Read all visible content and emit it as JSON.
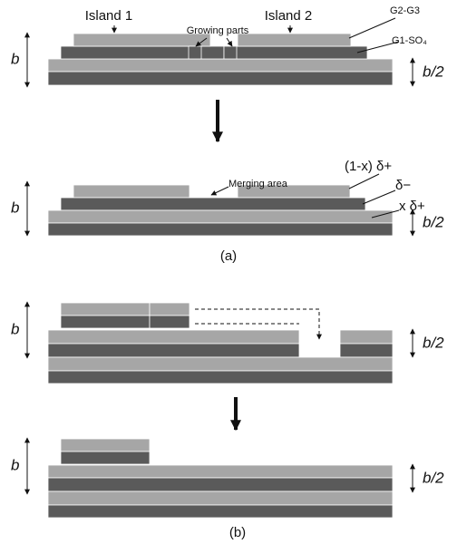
{
  "panel_a": {
    "top": {
      "island_1": "Island 1",
      "island_2": "Island 2",
      "growing_parts": "Growing parts",
      "g2_g3": "G2-G3",
      "g1_so4": "G1-SO₄",
      "b": "b",
      "b_half": "b/2"
    },
    "bottom": {
      "merging_area": "Merging area",
      "layer_top": "(1-x) δ+",
      "layer_mid": "δ−",
      "layer_low": "x δ+",
      "b": "b",
      "b_half": "b/2"
    },
    "caption": "(a)"
  },
  "panel_b": {
    "top": {
      "b": "b",
      "b_half": "b/2"
    },
    "bottom": {
      "b": "b",
      "b_half": "b/2"
    },
    "caption": "(b)"
  }
}
